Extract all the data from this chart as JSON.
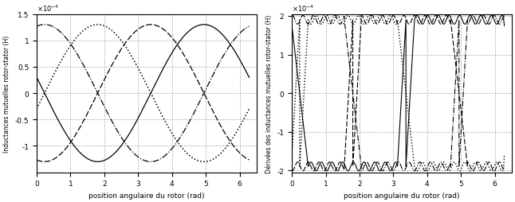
{
  "left_ylabel": "Inductances mutuelles rotor-stator (H)",
  "right_ylabel": "Dérivées des inductances mutuelles rotor-stator (H)",
  "xlabel": "position angulaire du rotor (rad)",
  "left_ylim": [
    -0.00015,
    0.00015
  ],
  "right_ylim": [
    -0.000205,
    0.000205
  ],
  "left_yticks": [
    -0.0001,
    -5e-05,
    0,
    5e-05,
    0.0001,
    0.00015
  ],
  "right_yticks": [
    -0.0002,
    -0.0001,
    0,
    0.0001,
    0.0002
  ],
  "xlim": [
    0,
    6.5
  ],
  "xticks": [
    0,
    1,
    2,
    3,
    4,
    5,
    6
  ],
  "M_max": 0.00013,
  "dM_max": 0.00019,
  "p": 1,
  "background": "#ffffff",
  "line_color": "#000000",
  "grid_color": "#aaaaaa",
  "figsize": [
    6.46,
    2.55
  ],
  "dpi": 100
}
